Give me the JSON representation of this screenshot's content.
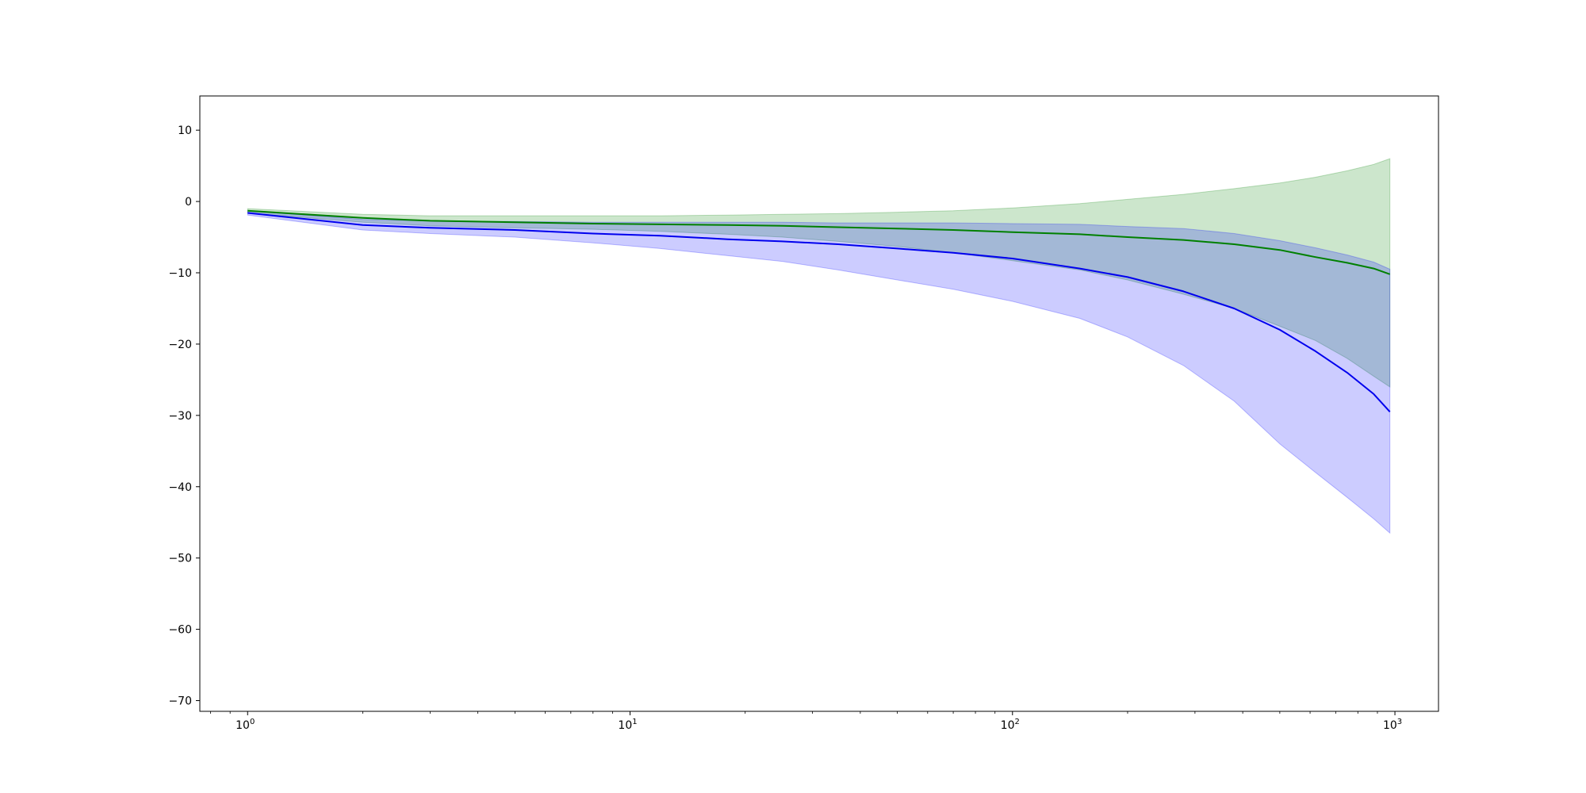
{
  "chart_data": {
    "type": "line",
    "title": "",
    "xlabel": "",
    "ylabel": "",
    "x_scale": "log",
    "xlim": [
      0.75,
      1300
    ],
    "ylim": [
      -71.5,
      14.8
    ],
    "grid": false,
    "legend": "none",
    "x_ticks": [
      {
        "value": 1,
        "base": "10",
        "exp": "0"
      },
      {
        "value": 10,
        "base": "10",
        "exp": "1"
      },
      {
        "value": 100,
        "base": "10",
        "exp": "2"
      },
      {
        "value": 1000,
        "base": "10",
        "exp": "3"
      }
    ],
    "y_ticks": [
      {
        "value": 10,
        "label": "10"
      },
      {
        "value": 0,
        "label": "0"
      },
      {
        "value": -10,
        "label": "−10"
      },
      {
        "value": -20,
        "label": "−20"
      },
      {
        "value": -30,
        "label": "−30"
      },
      {
        "value": -40,
        "label": "−40"
      },
      {
        "value": -50,
        "label": "−50"
      },
      {
        "value": -60,
        "label": "−60"
      },
      {
        "value": -70,
        "label": "−70"
      }
    ],
    "series": [
      {
        "color": "#008000",
        "band_color": "#008000",
        "band_opacity": 0.2,
        "x": [
          1,
          2,
          3,
          5,
          8,
          12,
          18,
          25,
          35,
          50,
          70,
          100,
          150,
          200,
          280,
          380,
          500,
          620,
          750,
          880,
          970
        ],
        "mean": [
          -1.3,
          -2.3,
          -2.7,
          -2.9,
          -3.1,
          -3.2,
          -3.3,
          -3.4,
          -3.6,
          -3.8,
          -4.0,
          -4.3,
          -4.6,
          -5.0,
          -5.4,
          -6.0,
          -6.8,
          -7.8,
          -8.6,
          -9.4,
          -10.2
        ],
        "upper": [
          -1.0,
          -1.8,
          -2.0,
          -2.0,
          -2.0,
          -2.0,
          -1.9,
          -1.8,
          -1.7,
          -1.5,
          -1.3,
          -0.9,
          -0.3,
          0.3,
          1.0,
          1.8,
          2.6,
          3.4,
          4.3,
          5.2,
          6.0
        ],
        "lower": [
          -1.6,
          -2.9,
          -3.4,
          -3.7,
          -3.9,
          -4.2,
          -4.6,
          -5.0,
          -5.6,
          -6.3,
          -7.2,
          -8.3,
          -9.6,
          -11.0,
          -13.0,
          -15.0,
          -17.5,
          -19.5,
          -22.0,
          -24.5,
          -26.0
        ]
      },
      {
        "color": "#0000ee",
        "band_color": "#0000ff",
        "band_opacity": 0.2,
        "x": [
          1,
          2,
          3,
          5,
          8,
          12,
          18,
          25,
          35,
          50,
          70,
          100,
          150,
          200,
          280,
          380,
          500,
          620,
          750,
          880,
          970
        ],
        "mean": [
          -1.6,
          -3.3,
          -3.7,
          -4.0,
          -4.5,
          -4.8,
          -5.3,
          -5.6,
          -6.0,
          -6.6,
          -7.2,
          -8.0,
          -9.4,
          -10.6,
          -12.6,
          -15.0,
          -18.0,
          -21.0,
          -24.0,
          -27.0,
          -29.5
        ],
        "upper": [
          -1.3,
          -2.5,
          -2.7,
          -2.8,
          -2.9,
          -2.9,
          -2.9,
          -2.9,
          -3.0,
          -3.0,
          -3.0,
          -3.1,
          -3.2,
          -3.5,
          -3.8,
          -4.5,
          -5.5,
          -6.5,
          -7.5,
          -8.5,
          -9.5
        ],
        "lower": [
          -1.9,
          -4.0,
          -4.5,
          -5.0,
          -5.8,
          -6.6,
          -7.6,
          -8.4,
          -9.6,
          -11.0,
          -12.3,
          -14.0,
          -16.4,
          -19.0,
          -23.0,
          -28.0,
          -34.0,
          -38.0,
          -41.5,
          -44.5,
          -46.5
        ]
      }
    ]
  }
}
